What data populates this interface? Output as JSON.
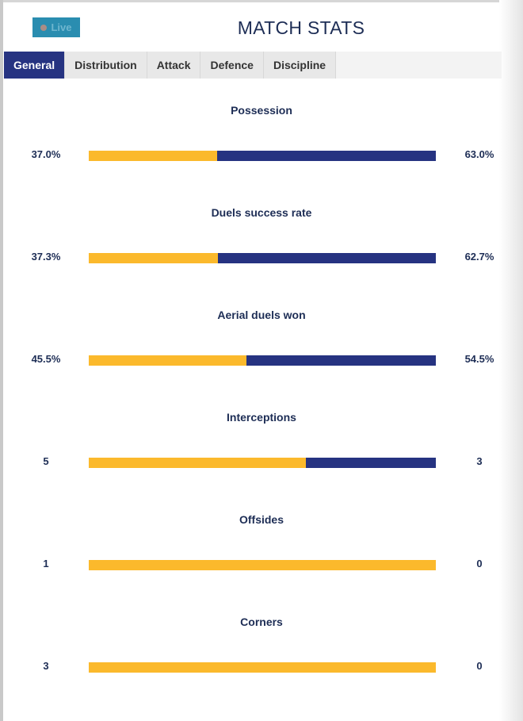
{
  "header": {
    "live_label": "Live",
    "title": "MATCH STATS"
  },
  "tabs": [
    {
      "label": "General",
      "active": true
    },
    {
      "label": "Distribution"
    },
    {
      "label": "Attack"
    },
    {
      "label": "Defence"
    },
    {
      "label": "Discipline"
    }
  ],
  "colors": {
    "home": "#fbb92c",
    "away": "#263381"
  },
  "stats": [
    {
      "label": "Possession",
      "home": "37.0%",
      "away": "63.0%",
      "home_share": 37.0
    },
    {
      "label": "Duels success rate",
      "home": "37.3%",
      "away": "62.7%",
      "home_share": 37.3
    },
    {
      "label": "Aerial duels won",
      "home": "45.5%",
      "away": "54.5%",
      "home_share": 45.5
    },
    {
      "label": "Interceptions",
      "home": "5",
      "away": "3",
      "home_share": 62.5
    },
    {
      "label": "Offsides",
      "home": "1",
      "away": "0",
      "home_share": 100
    },
    {
      "label": "Corners",
      "home": "3",
      "away": "0",
      "home_share": 100
    }
  ]
}
